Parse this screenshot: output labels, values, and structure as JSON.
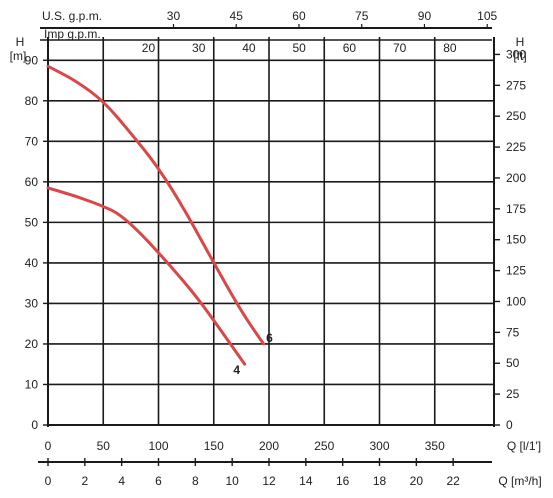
{
  "chart_data": {
    "type": "line",
    "title": "",
    "x_axis": {
      "label": "Q [l/1']",
      "range": [
        0,
        400
      ],
      "ticks": [
        "0",
        "50",
        "100",
        "150",
        "200",
        "250",
        "300",
        "350"
      ]
    },
    "x_axis_m3h": {
      "label": "Q [m³/h]",
      "ticks": [
        "0",
        "2",
        "4",
        "6",
        "8",
        "10",
        "12",
        "14",
        "16",
        "18",
        "20",
        "22"
      ]
    },
    "top_axis_us_gpm": {
      "label": "U.S. g.p.m.",
      "ticks": [
        "30",
        "45",
        "60",
        "75",
        "90",
        "105"
      ]
    },
    "top_axis_imp_gpm": {
      "label": "Imp g.p.m.",
      "ticks": [
        "20",
        "30",
        "40",
        "50",
        "60",
        "70",
        "80"
      ]
    },
    "left_axis": {
      "label": "H",
      "unit": "[m]",
      "range": [
        0,
        95
      ],
      "ticks": [
        "0",
        "10",
        "20",
        "30",
        "40",
        "50",
        "60",
        "70",
        "80",
        "90"
      ]
    },
    "right_axis": {
      "label": "H",
      "unit": "[ft]",
      "ticks": [
        "0",
        "25",
        "50",
        "75",
        "100",
        "125",
        "150",
        "175",
        "200",
        "225",
        "250",
        "275",
        "300"
      ]
    },
    "grid": true,
    "series": [
      {
        "name": "6",
        "color": "#d84848",
        "points": [
          [
            0,
            88.5
          ],
          [
            25,
            85
          ],
          [
            50,
            80
          ],
          [
            75,
            72
          ],
          [
            100,
            63.5
          ],
          [
            125,
            52.5
          ],
          [
            150,
            40
          ],
          [
            175,
            28
          ],
          [
            195,
            20
          ]
        ]
      },
      {
        "name": "4",
        "color": "#d84848",
        "points": [
          [
            0,
            58.5
          ],
          [
            25,
            56.5
          ],
          [
            50,
            54
          ],
          [
            65,
            52
          ],
          [
            85,
            47
          ],
          [
            110,
            39.5
          ],
          [
            135,
            31.5
          ],
          [
            160,
            22
          ],
          [
            178,
            15
          ]
        ]
      }
    ]
  }
}
